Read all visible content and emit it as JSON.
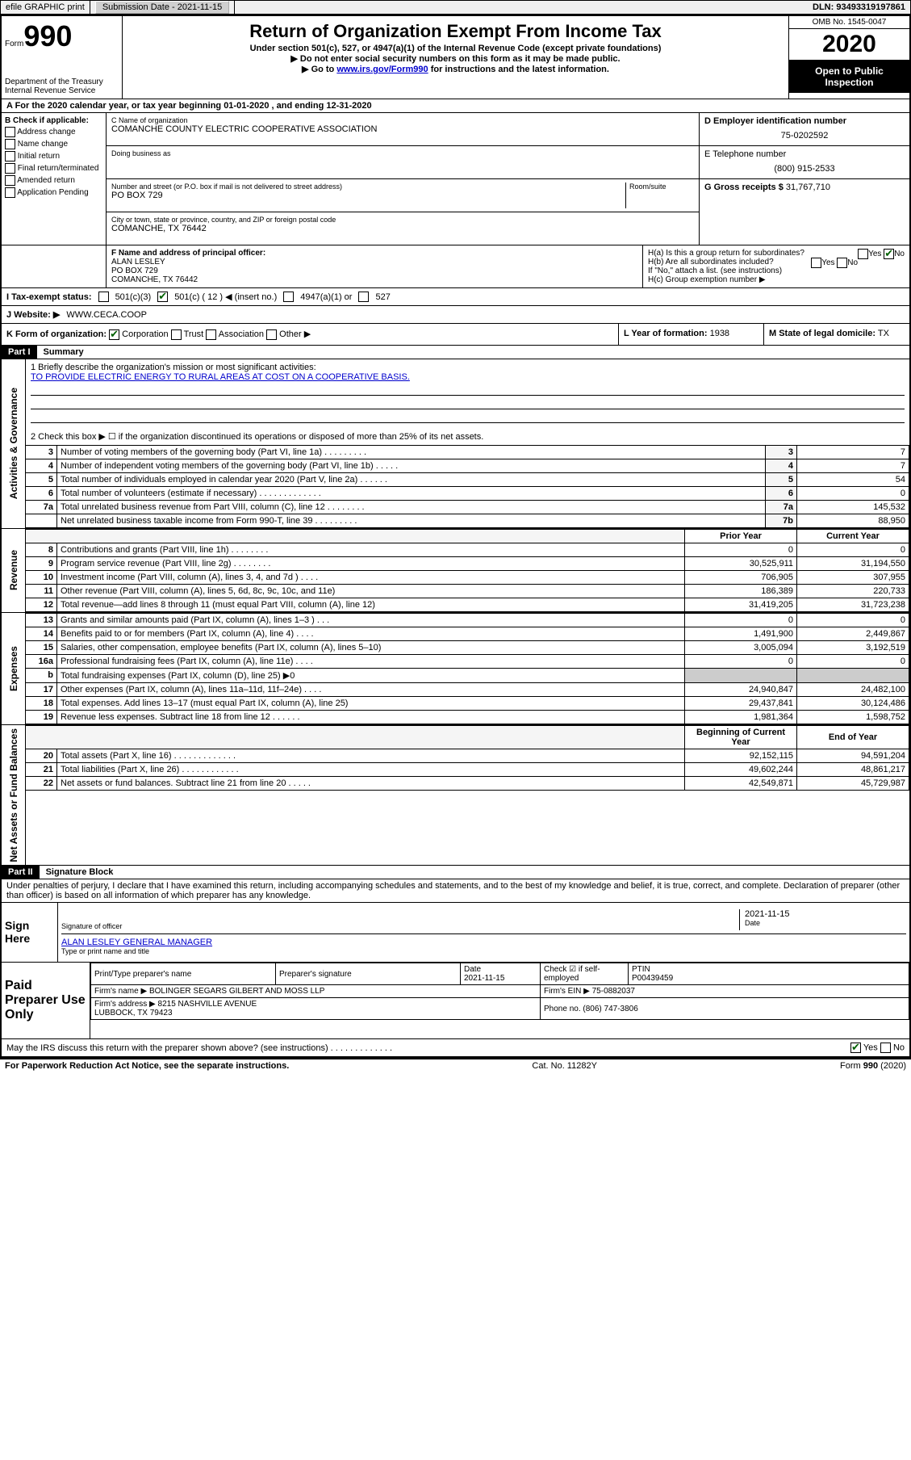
{
  "top_bar": {
    "efile": "efile GRAPHIC print",
    "submission_label": "Submission Date - 2021-11-15",
    "dln": "DLN: 93493319197861"
  },
  "header": {
    "form_prefix": "Form",
    "form_number": "990",
    "dept": "Department of the Treasury\nInternal Revenue Service",
    "title": "Return of Organization Exempt From Income Tax",
    "subtitle": "Under section 501(c), 527, or 4947(a)(1) of the Internal Revenue Code (except private foundations)",
    "note1": "▶ Do not enter social security numbers on this form as it may be made public.",
    "note2_pre": "▶ Go to ",
    "note2_link": "www.irs.gov/Form990",
    "note2_post": " for instructions and the latest information.",
    "omb": "OMB No. 1545-0047",
    "year": "2020",
    "open_public": "Open to Public Inspection"
  },
  "row_a": "A For the 2020 calendar year, or tax year beginning 01-01-2020   , and ending 12-31-2020",
  "col_b": {
    "header": "B Check if applicable:",
    "items": [
      "Address change",
      "Name change",
      "Initial return",
      "Final return/terminated",
      "Amended return",
      "Application Pending"
    ]
  },
  "col_c": {
    "name_label": "C Name of organization",
    "name": "COMANCHE COUNTY ELECTRIC COOPERATIVE ASSOCIATION",
    "dba_label": "Doing business as",
    "dba": "",
    "street_label": "Number and street (or P.O. box if mail is not delivered to street address)",
    "room_label": "Room/suite",
    "street": "PO BOX 729",
    "city_label": "City or town, state or province, country, and ZIP or foreign postal code",
    "city": "COMANCHE, TX  76442"
  },
  "col_d": {
    "ein_label": "D Employer identification number",
    "ein": "75-0202592",
    "phone_label": "E Telephone number",
    "phone": "(800) 915-2533",
    "gross_label": "G Gross receipts $",
    "gross": "31,767,710"
  },
  "row_f": {
    "label": "F Name and address of principal officer:",
    "name": "ALAN LESLEY",
    "addr1": "PO BOX 729",
    "addr2": "COMANCHE, TX  76442"
  },
  "row_h": {
    "ha": "H(a)  Is this a group return for subordinates?",
    "hb": "H(b)  Are all subordinates included?",
    "hb_note": "If \"No,\" attach a list. (see instructions)",
    "hc": "H(c)  Group exemption number ▶",
    "yes": "Yes",
    "no": "No"
  },
  "row_i": {
    "label": "I   Tax-exempt status:",
    "opts": [
      "501(c)(3)",
      "501(c) ( 12 ) ◀ (insert no.)",
      "4947(a)(1) or",
      "527"
    ]
  },
  "row_j": {
    "label": "J   Website: ▶",
    "value": "WWW.CECA.COOP"
  },
  "row_k": {
    "label": "K Form of organization:",
    "opts": [
      "Corporation",
      "Trust",
      "Association",
      "Other ▶"
    ],
    "l_label": "L Year of formation:",
    "l_val": "1938",
    "m_label": "M State of legal domicile:",
    "m_val": "TX"
  },
  "part1": {
    "header": "Part I",
    "title": "Summary",
    "sections": {
      "governance_label": "Activities & Governance",
      "revenue_label": "Revenue",
      "expenses_label": "Expenses",
      "netassets_label": "Net Assets or Fund Balances"
    },
    "line1_label": "1   Briefly describe the organization's mission or most significant activities:",
    "line1_value": "TO PROVIDE ELECTRIC ENERGY TO RURAL AREAS AT COST ON A COOPERATIVE BASIS.",
    "line2": "2   Check this box ▶ ☐  if the organization discontinued its operations or disposed of more than 25% of its net assets.",
    "governance_rows": [
      {
        "n": "3",
        "desc": "Number of voting members of the governing body (Part VI, line 1a)  .  .  .  .  .  .  .  .  .",
        "box": "3",
        "val": "7"
      },
      {
        "n": "4",
        "desc": "Number of independent voting members of the governing body (Part VI, line 1b)  .  .  .  .  .",
        "box": "4",
        "val": "7"
      },
      {
        "n": "5",
        "desc": "Total number of individuals employed in calendar year 2020 (Part V, line 2a)  .  .  .  .  .  .",
        "box": "5",
        "val": "54"
      },
      {
        "n": "6",
        "desc": "Total number of volunteers (estimate if necessary)  .  .  .  .  .  .  .  .  .  .  .  .  .",
        "box": "6",
        "val": "0"
      },
      {
        "n": "7a",
        "desc": "Total unrelated business revenue from Part VIII, column (C), line 12  .  .  .  .  .  .  .  .",
        "box": "7a",
        "val": "145,532"
      },
      {
        "n": "",
        "desc": "Net unrelated business taxable income from Form 990-T, line 39  .  .  .  .  .  .  .  .  .",
        "box": "7b",
        "val": "88,950"
      }
    ],
    "col_headers": {
      "prior": "Prior Year",
      "current": "Current Year"
    },
    "revenue_rows": [
      {
        "n": "8",
        "desc": "Contributions and grants (Part VIII, line 1h)  .  .  .  .  .  .  .  .",
        "prior": "0",
        "current": "0"
      },
      {
        "n": "9",
        "desc": "Program service revenue (Part VIII, line 2g)  .  .  .  .  .  .  .  .",
        "prior": "30,525,911",
        "current": "31,194,550"
      },
      {
        "n": "10",
        "desc": "Investment income (Part VIII, column (A), lines 3, 4, and 7d )  .  .  .  .",
        "prior": "706,905",
        "current": "307,955"
      },
      {
        "n": "11",
        "desc": "Other revenue (Part VIII, column (A), lines 5, 6d, 8c, 9c, 10c, and 11e)",
        "prior": "186,389",
        "current": "220,733"
      },
      {
        "n": "12",
        "desc": "Total revenue—add lines 8 through 11 (must equal Part VIII, column (A), line 12)",
        "prior": "31,419,205",
        "current": "31,723,238"
      }
    ],
    "expenses_rows": [
      {
        "n": "13",
        "desc": "Grants and similar amounts paid (Part IX, column (A), lines 1–3 )  .  .  .",
        "prior": "0",
        "current": "0"
      },
      {
        "n": "14",
        "desc": "Benefits paid to or for members (Part IX, column (A), line 4)  .  .  .  .",
        "prior": "1,491,900",
        "current": "2,449,867"
      },
      {
        "n": "15",
        "desc": "Salaries, other compensation, employee benefits (Part IX, column (A), lines 5–10)",
        "prior": "3,005,094",
        "current": "3,192,519"
      },
      {
        "n": "16a",
        "desc": "Professional fundraising fees (Part IX, column (A), line 11e)  .  .  .  .",
        "prior": "0",
        "current": "0"
      },
      {
        "n": "b",
        "desc": "Total fundraising expenses (Part IX, column (D), line 25) ▶0",
        "prior": "",
        "current": ""
      },
      {
        "n": "17",
        "desc": "Other expenses (Part IX, column (A), lines 11a–11d, 11f–24e)  .  .  .  .",
        "prior": "24,940,847",
        "current": "24,482,100"
      },
      {
        "n": "18",
        "desc": "Total expenses. Add lines 13–17 (must equal Part IX, column (A), line 25)",
        "prior": "29,437,841",
        "current": "30,124,486"
      },
      {
        "n": "19",
        "desc": "Revenue less expenses. Subtract line 18 from line 12  .  .  .  .  .  .",
        "prior": "1,981,364",
        "current": "1,598,752"
      }
    ],
    "balance_headers": {
      "begin": "Beginning of Current Year",
      "end": "End of Year"
    },
    "balance_rows": [
      {
        "n": "20",
        "desc": "Total assets (Part X, line 16)  .  .  .  .  .  .  .  .  .  .  .  .  .",
        "prior": "92,152,115",
        "current": "94,591,204"
      },
      {
        "n": "21",
        "desc": "Total liabilities (Part X, line 26)  .  .  .  .  .  .  .  .  .  .  .  .",
        "prior": "49,602,244",
        "current": "48,861,217"
      },
      {
        "n": "22",
        "desc": "Net assets or fund balances. Subtract line 21 from line 20  .  .  .  .  .",
        "prior": "42,549,871",
        "current": "45,729,987"
      }
    ]
  },
  "part2": {
    "header": "Part II",
    "title": "Signature Block",
    "perjury": "Under penalties of perjury, I declare that I have examined this return, including accompanying schedules and statements, and to the best of my knowledge and belief, it is true, correct, and complete. Declaration of preparer (other than officer) is based on all information of which preparer has any knowledge."
  },
  "sign": {
    "label": "Sign Here",
    "sig_label": "Signature of officer",
    "date_label": "Date",
    "date": "2021-11-15",
    "name": "ALAN LESLEY  GENERAL MANAGER",
    "name_label": "Type or print name and title"
  },
  "preparer": {
    "label": "Paid Preparer Use Only",
    "headers": [
      "Print/Type preparer's name",
      "Preparer's signature",
      "Date",
      "Check ☑ if self-employed",
      "PTIN"
    ],
    "date": "2021-11-15",
    "ptin": "P00439459",
    "firm_label": "Firm's name      ▶",
    "firm": "BOLINGER SEGARS GILBERT AND MOSS LLP",
    "ein_label": "Firm's EIN ▶",
    "ein": "75-0882037",
    "addr_label": "Firm's address ▶",
    "addr": "8215 NASHVILLE AVENUE\nLUBBOCK, TX  79423",
    "phone_label": "Phone no.",
    "phone": "(806) 747-3806",
    "discuss": "May the IRS discuss this return with the preparer shown above? (see instructions)  .  .  .  .  .  .  .  .  .  .  .  .  ."
  },
  "footer": {
    "left": "For Paperwork Reduction Act Notice, see the separate instructions.",
    "mid": "Cat. No. 11282Y",
    "right": "Form 990 (2020)"
  },
  "colors": {
    "link": "#0000cc",
    "check": "#006000"
  }
}
